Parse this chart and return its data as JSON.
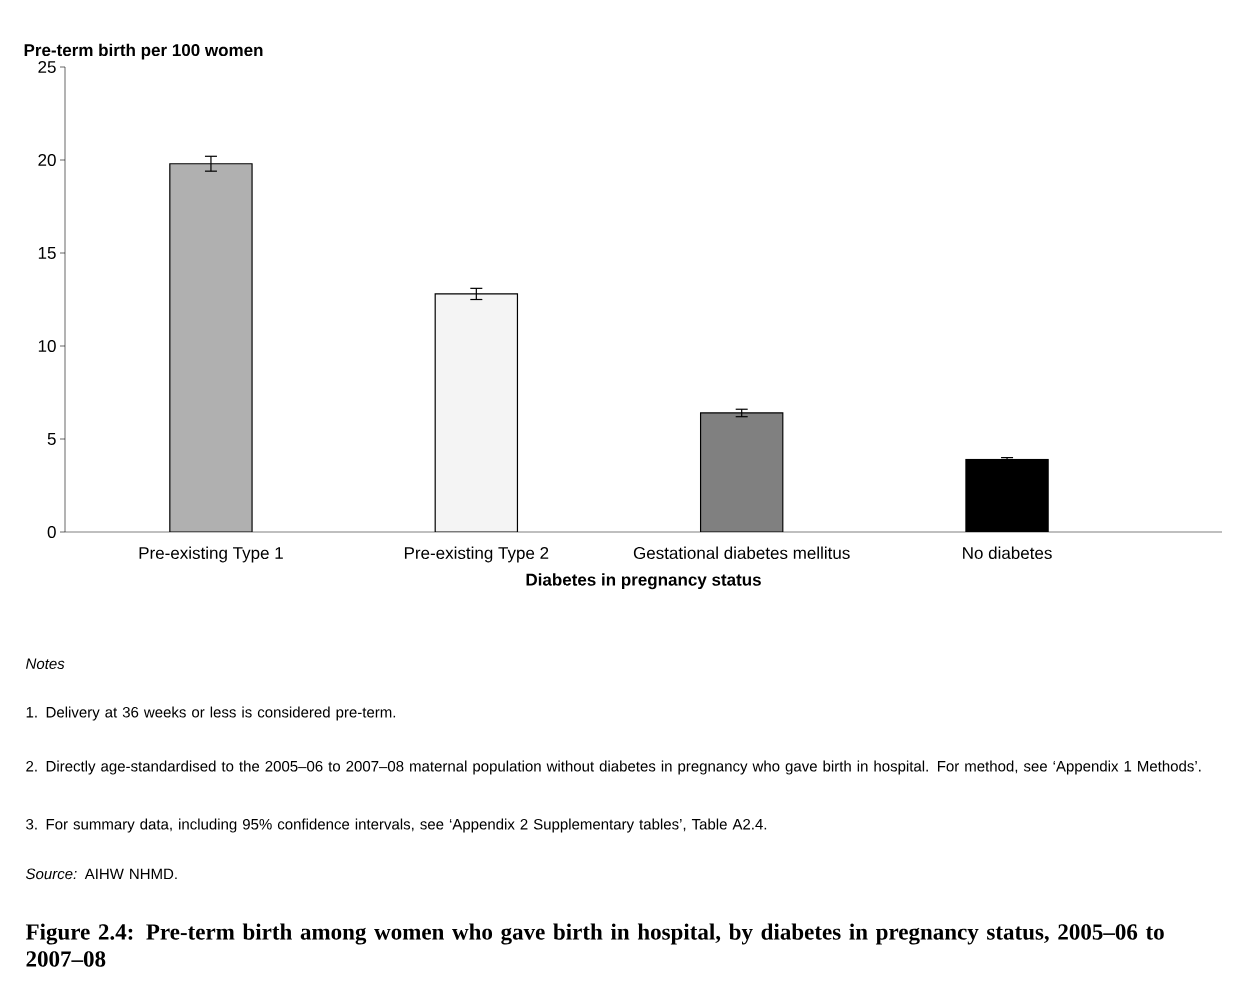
{
  "chart_data": {
    "type": "bar",
    "title": "Figure 2.4: Pre-term birth among women who gave birth in hospital, by diabetes in pregnancy status, 2005–06 to 2007–08",
    "ylabel": "Pre-term birth per 100 women",
    "xlabel": "Diabetes in pregnancy status",
    "categories": [
      "Pre-existing Type 1",
      "Pre-existing Type 2",
      "Gestational diabetes mellitus",
      "No diabetes"
    ],
    "values": [
      19.8,
      12.8,
      6.4,
      3.9
    ],
    "errors": [
      0.4,
      0.3,
      0.2,
      0.1
    ],
    "colors": [
      "#b0b0b0",
      "#f4f4f4",
      "#808080",
      "#000000"
    ],
    "ylim": [
      0,
      25
    ],
    "yticks": [
      0,
      5,
      10,
      15,
      20,
      25
    ],
    "grid": false,
    "annotations": [
      "*Notes*",
      "1. Delivery at 36 weeks or less is considered pre-term.",
      "2. Directly age-standardised to the 2005–06 to 2007–08 maternal population without diabetes in pregnancy who gave birth in hospital. For method, see ‘Appendix 1 Methods’.",
      "3. For summary data, including 95% confidence intervals, see ‘Appendix 2 Supplementary tables’, Table A2.4.",
      "*Source:* AIHW NHMD."
    ]
  }
}
